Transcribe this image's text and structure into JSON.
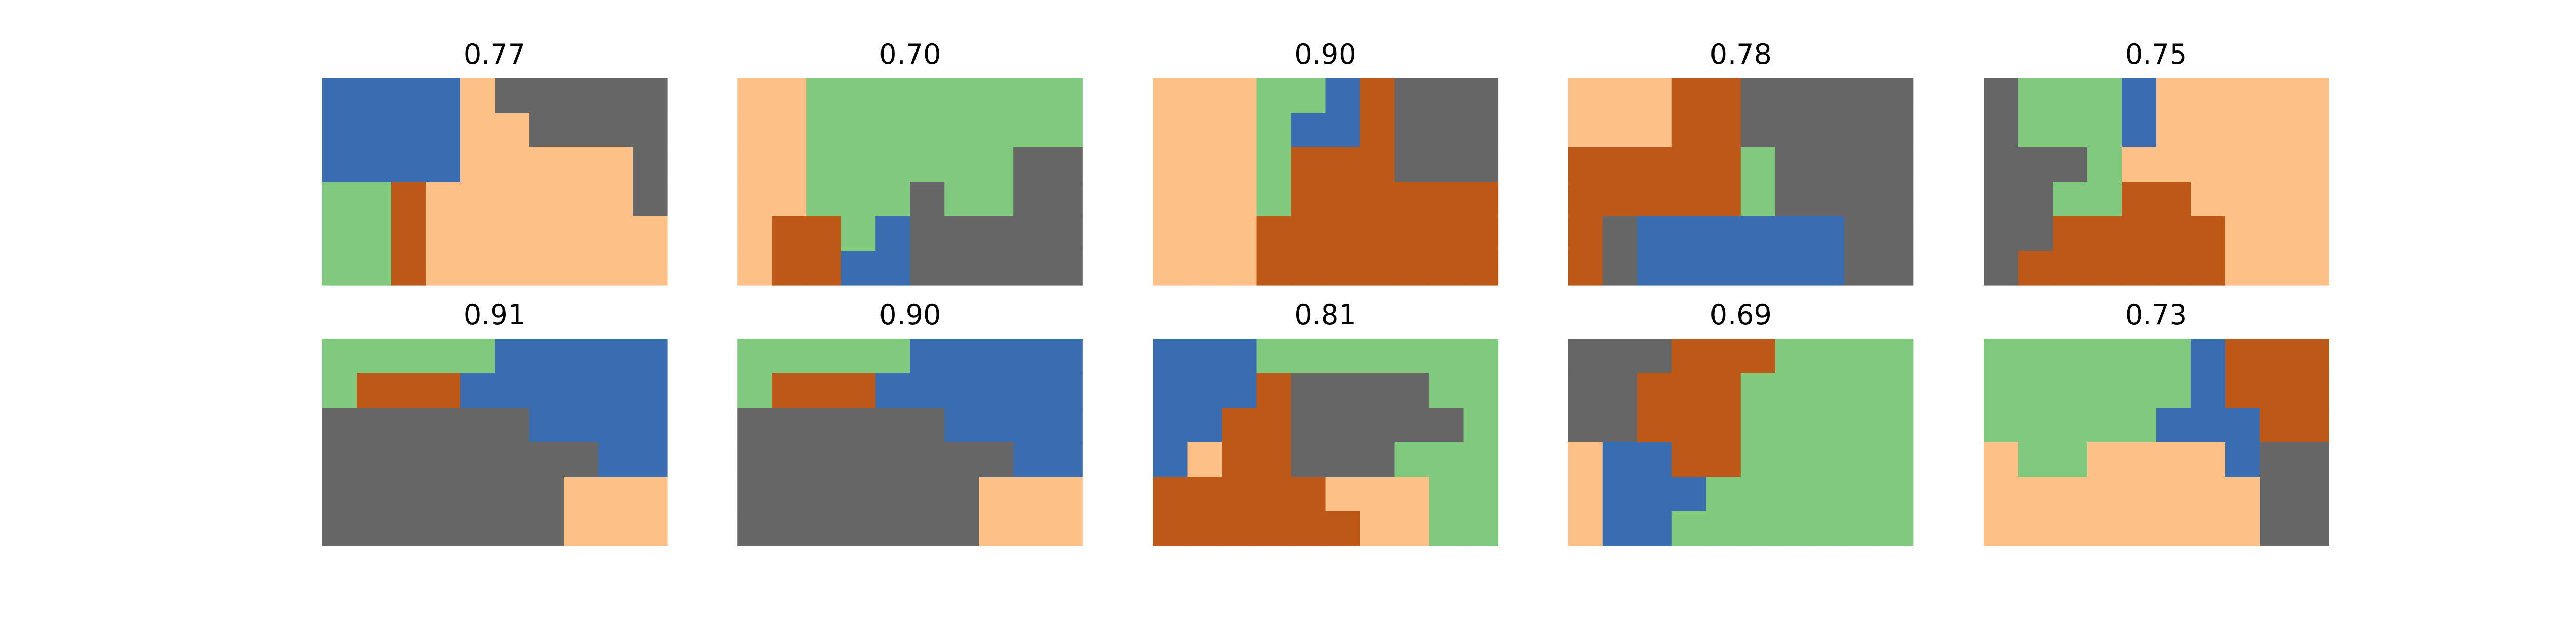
{
  "palette": {
    "0": "#3a6cb1",
    "1": "#fdc188",
    "2": "#666666",
    "3": "#80c97f",
    "4": "#bd5817"
  },
  "chart_data": [
    {
      "type": "heatmap",
      "title": "0.77",
      "grid": [
        [
          0,
          0,
          0,
          0,
          1,
          2,
          2,
          2,
          2,
          2
        ],
        [
          0,
          0,
          0,
          0,
          1,
          1,
          2,
          2,
          2,
          2
        ],
        [
          0,
          0,
          0,
          0,
          1,
          1,
          1,
          1,
          1,
          2
        ],
        [
          3,
          3,
          4,
          1,
          1,
          1,
          1,
          1,
          1,
          2
        ],
        [
          3,
          3,
          4,
          1,
          1,
          1,
          1,
          1,
          1,
          1
        ],
        [
          3,
          3,
          4,
          1,
          1,
          1,
          1,
          1,
          1,
          1
        ]
      ]
    },
    {
      "type": "heatmap",
      "title": "0.70",
      "grid": [
        [
          1,
          1,
          3,
          3,
          3,
          3,
          3,
          3,
          3,
          3
        ],
        [
          1,
          1,
          3,
          3,
          3,
          3,
          3,
          3,
          3,
          3
        ],
        [
          1,
          1,
          3,
          3,
          3,
          3,
          3,
          3,
          2,
          2
        ],
        [
          1,
          1,
          3,
          3,
          3,
          2,
          3,
          3,
          2,
          2
        ],
        [
          1,
          4,
          4,
          3,
          0,
          2,
          2,
          2,
          2,
          2
        ],
        [
          1,
          4,
          4,
          0,
          0,
          2,
          2,
          2,
          2,
          2
        ]
      ]
    },
    {
      "type": "heatmap",
      "title": "0.90",
      "grid": [
        [
          1,
          1,
          1,
          3,
          3,
          0,
          4,
          2,
          2,
          2
        ],
        [
          1,
          1,
          1,
          3,
          0,
          0,
          4,
          2,
          2,
          2
        ],
        [
          1,
          1,
          1,
          3,
          4,
          4,
          4,
          2,
          2,
          2
        ],
        [
          1,
          1,
          1,
          3,
          4,
          4,
          4,
          4,
          4,
          4
        ],
        [
          1,
          1,
          1,
          4,
          4,
          4,
          4,
          4,
          4,
          4
        ],
        [
          1,
          1,
          1,
          4,
          4,
          4,
          4,
          4,
          4,
          4
        ]
      ]
    },
    {
      "type": "heatmap",
      "title": "0.78",
      "grid": [
        [
          1,
          1,
          1,
          4,
          4,
          2,
          2,
          2,
          2,
          2
        ],
        [
          1,
          1,
          1,
          4,
          4,
          2,
          2,
          2,
          2,
          2
        ],
        [
          4,
          4,
          4,
          4,
          4,
          3,
          2,
          2,
          2,
          2
        ],
        [
          4,
          4,
          4,
          4,
          4,
          3,
          2,
          2,
          2,
          2
        ],
        [
          4,
          2,
          0,
          0,
          0,
          0,
          0,
          0,
          2,
          2
        ],
        [
          4,
          2,
          0,
          0,
          0,
          0,
          0,
          0,
          2,
          2
        ]
      ]
    },
    {
      "type": "heatmap",
      "title": "0.75",
      "grid": [
        [
          2,
          3,
          3,
          3,
          0,
          1,
          1,
          1,
          1,
          1
        ],
        [
          2,
          3,
          3,
          3,
          0,
          1,
          1,
          1,
          1,
          1
        ],
        [
          2,
          2,
          2,
          3,
          1,
          1,
          1,
          1,
          1,
          1
        ],
        [
          2,
          2,
          3,
          3,
          4,
          4,
          1,
          1,
          1,
          1
        ],
        [
          2,
          2,
          4,
          4,
          4,
          4,
          4,
          1,
          1,
          1
        ],
        [
          2,
          4,
          4,
          4,
          4,
          4,
          4,
          1,
          1,
          1
        ]
      ]
    },
    {
      "type": "heatmap",
      "title": "0.91",
      "grid": [
        [
          3,
          3,
          3,
          3,
          3,
          0,
          0,
          0,
          0,
          0
        ],
        [
          3,
          4,
          4,
          4,
          0,
          0,
          0,
          0,
          0,
          0
        ],
        [
          2,
          2,
          2,
          2,
          2,
          2,
          0,
          0,
          0,
          0
        ],
        [
          2,
          2,
          2,
          2,
          2,
          2,
          2,
          2,
          0,
          0
        ],
        [
          2,
          2,
          2,
          2,
          2,
          2,
          2,
          1,
          1,
          1
        ],
        [
          2,
          2,
          2,
          2,
          2,
          2,
          2,
          1,
          1,
          1
        ]
      ]
    },
    {
      "type": "heatmap",
      "title": "0.90",
      "grid": [
        [
          3,
          3,
          3,
          3,
          3,
          0,
          0,
          0,
          0,
          0
        ],
        [
          3,
          4,
          4,
          4,
          0,
          0,
          0,
          0,
          0,
          0
        ],
        [
          2,
          2,
          2,
          2,
          2,
          2,
          0,
          0,
          0,
          0
        ],
        [
          2,
          2,
          2,
          2,
          2,
          2,
          2,
          2,
          0,
          0
        ],
        [
          2,
          2,
          2,
          2,
          2,
          2,
          2,
          1,
          1,
          1
        ],
        [
          2,
          2,
          2,
          2,
          2,
          2,
          2,
          1,
          1,
          1
        ]
      ]
    },
    {
      "type": "heatmap",
      "title": "0.81",
      "grid": [
        [
          0,
          0,
          0,
          3,
          3,
          3,
          3,
          3,
          3,
          3
        ],
        [
          0,
          0,
          0,
          4,
          2,
          2,
          2,
          2,
          3,
          3
        ],
        [
          0,
          0,
          4,
          4,
          2,
          2,
          2,
          2,
          2,
          3
        ],
        [
          0,
          1,
          4,
          4,
          2,
          2,
          2,
          3,
          3,
          3
        ],
        [
          4,
          4,
          4,
          4,
          4,
          1,
          1,
          1,
          3,
          3
        ],
        [
          4,
          4,
          4,
          4,
          4,
          4,
          1,
          1,
          3,
          3
        ]
      ]
    },
    {
      "type": "heatmap",
      "title": "0.69",
      "grid": [
        [
          2,
          2,
          2,
          4,
          4,
          4,
          3,
          3,
          3,
          3
        ],
        [
          2,
          2,
          4,
          4,
          4,
          3,
          3,
          3,
          3,
          3
        ],
        [
          2,
          2,
          4,
          4,
          4,
          3,
          3,
          3,
          3,
          3
        ],
        [
          1,
          0,
          0,
          4,
          4,
          3,
          3,
          3,
          3,
          3
        ],
        [
          1,
          0,
          0,
          0,
          3,
          3,
          3,
          3,
          3,
          3
        ],
        [
          1,
          0,
          0,
          3,
          3,
          3,
          3,
          3,
          3,
          3
        ]
      ]
    },
    {
      "type": "heatmap",
      "title": "0.73",
      "grid": [
        [
          3,
          3,
          3,
          3,
          3,
          3,
          0,
          4,
          4,
          4
        ],
        [
          3,
          3,
          3,
          3,
          3,
          3,
          0,
          4,
          4,
          4
        ],
        [
          3,
          3,
          3,
          3,
          3,
          0,
          0,
          0,
          4,
          4
        ],
        [
          1,
          3,
          3,
          1,
          1,
          1,
          1,
          0,
          2,
          2
        ],
        [
          1,
          1,
          1,
          1,
          1,
          1,
          1,
          1,
          2,
          2
        ],
        [
          1,
          1,
          1,
          1,
          1,
          1,
          1,
          1,
          2,
          2
        ]
      ]
    }
  ]
}
